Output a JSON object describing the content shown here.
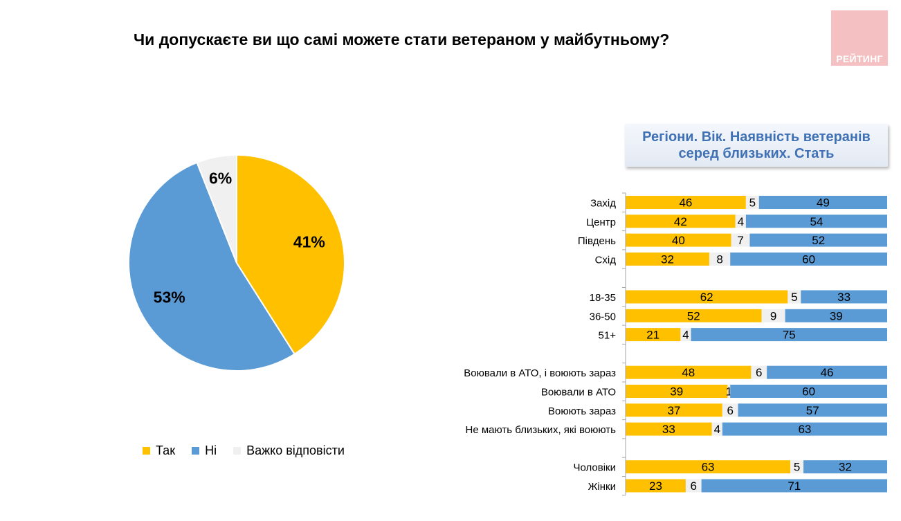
{
  "page": {
    "title": "Чи допускаєте ви що самі можете стати ветераном у майбутньому?",
    "logo_text": "РЕЙТИНГ"
  },
  "colors": {
    "yes": "#ffc000",
    "no": "#5b9bd5",
    "hard": "#f0f0f0",
    "subtitle_text": "#3f71b4",
    "logo_bg": "#f4c0c2"
  },
  "legend": [
    {
      "label": "Так",
      "color_key": "yes"
    },
    {
      "label": "Ні",
      "color_key": "no"
    },
    {
      "label": "Важко відповісти",
      "color_key": "hard"
    }
  ],
  "subtitle": "Регіони. Вік. Наявність ветеранів серед близьких. Стать",
  "chart_data": [
    {
      "type": "pie",
      "slices": [
        {
          "label": "Так",
          "value": 41,
          "display": "41%"
        },
        {
          "label": "Ні",
          "value": 53,
          "display": "53%"
        },
        {
          "label": "Важко відповісти",
          "value": 6,
          "display": "6%"
        }
      ]
    },
    {
      "type": "bar",
      "stacked": true,
      "orientation": "horizontal",
      "series": [
        {
          "name": "Так",
          "color_key": "yes"
        },
        {
          "name": "Важко відповісти",
          "color_key": "hard"
        },
        {
          "name": "Ні",
          "color_key": "no"
        }
      ],
      "groups": [
        {
          "rows": [
            {
              "label": "Захід",
              "values": [
                46,
                5,
                49
              ]
            },
            {
              "label": "Центр",
              "values": [
                42,
                4,
                54
              ]
            },
            {
              "label": "Південь",
              "values": [
                40,
                7,
                52
              ]
            },
            {
              "label": "Схід",
              "values": [
                32,
                8,
                60
              ]
            }
          ]
        },
        {
          "rows": [
            {
              "label": "18-35",
              "values": [
                62,
                5,
                33
              ]
            },
            {
              "label": "36-50",
              "values": [
                52,
                9,
                39
              ]
            },
            {
              "label": "51+",
              "values": [
                21,
                4,
                75
              ]
            }
          ]
        },
        {
          "rows": [
            {
              "label": "Воювали в АТО, і воюють зараз",
              "values": [
                48,
                6,
                46
              ]
            },
            {
              "label": "Воювали в АТО",
              "values": [
                39,
                1,
                60
              ]
            },
            {
              "label": "Воюють зараз",
              "values": [
                37,
                6,
                57
              ]
            },
            {
              "label": "Не мають близьких, які воюють",
              "values": [
                33,
                4,
                63
              ]
            }
          ]
        },
        {
          "rows": [
            {
              "label": "Чоловіки",
              "values": [
                63,
                5,
                32
              ]
            },
            {
              "label": "Жінки",
              "values": [
                23,
                6,
                71
              ]
            }
          ]
        }
      ]
    }
  ]
}
